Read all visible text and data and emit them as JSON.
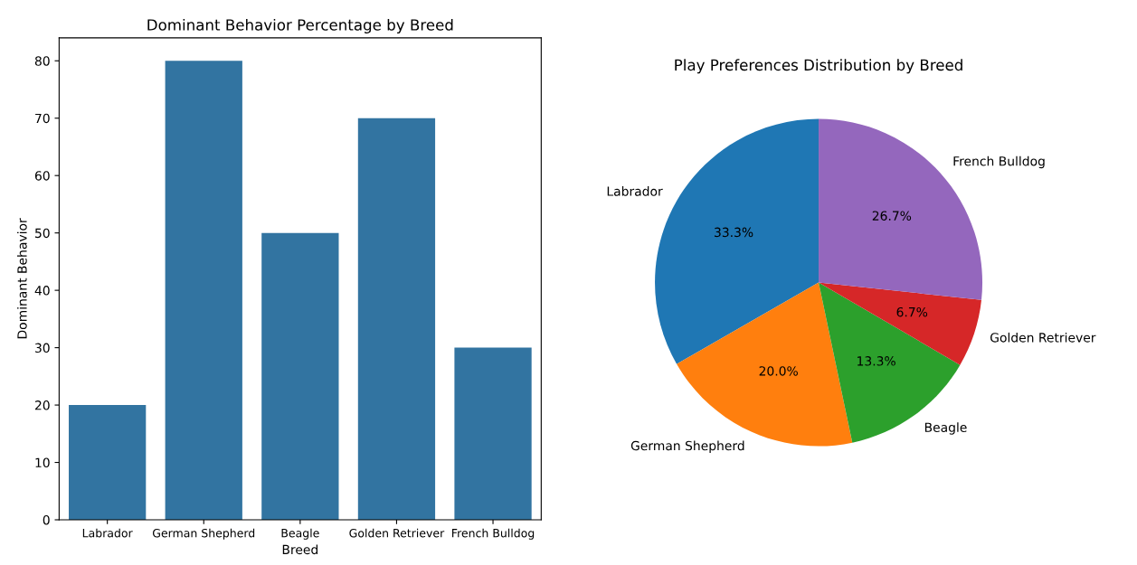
{
  "chart_data": [
    {
      "type": "bar",
      "title": "Dominant Behavior Percentage by Breed",
      "xlabel": "Breed",
      "ylabel": "Dominant Behavior",
      "categories": [
        "Labrador",
        "German Shepherd",
        "Beagle",
        "Golden Retriever",
        "French Bulldog"
      ],
      "values": [
        20,
        80,
        50,
        70,
        30
      ],
      "color": "#3274a1",
      "ylim": [
        0,
        84
      ],
      "yticks": [
        0,
        10,
        20,
        30,
        40,
        50,
        60,
        70,
        80
      ]
    },
    {
      "type": "pie",
      "title": "Play Preferences Distribution by Breed",
      "categories": [
        "Labrador",
        "German Shepherd",
        "Beagle",
        "Golden Retriever",
        "French Bulldog"
      ],
      "values": [
        33.3,
        20.0,
        13.3,
        6.7,
        26.7
      ],
      "value_labels": [
        "33.3%",
        "20.0%",
        "13.3%",
        "6.7%",
        "26.7%"
      ],
      "colors": [
        "#1f77b4",
        "#ff7f0e",
        "#2ca02c",
        "#d62728",
        "#9467bd"
      ]
    }
  ]
}
